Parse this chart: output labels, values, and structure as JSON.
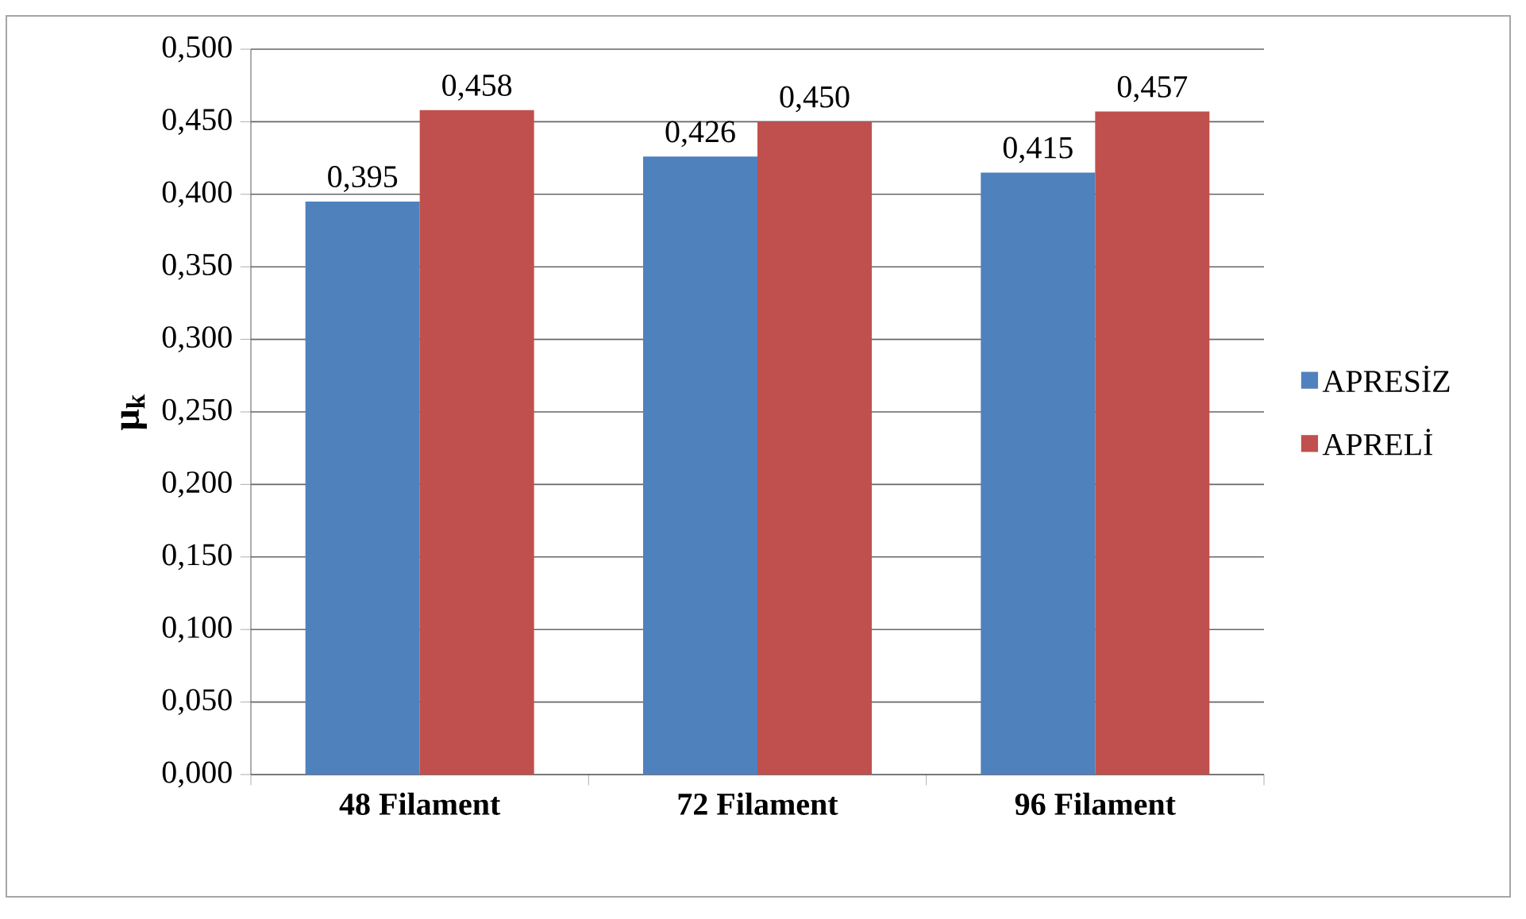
{
  "chart_data": {
    "type": "bar",
    "ylabel": "μ$_{k}$",
    "categories": [
      "48 Filament",
      "72 Filament",
      "96 Filament"
    ],
    "series": [
      {
        "name": "APRESİZ",
        "color": "#4f81bd",
        "values": [
          0.395,
          0.426,
          0.415
        ],
        "value_labels": [
          "0,395",
          "0,426",
          "0,415"
        ]
      },
      {
        "name": "APRELİ",
        "color": "#c0504d",
        "values": [
          0.458,
          0.45,
          0.457
        ],
        "value_labels": [
          "0,458",
          "0,450",
          "0,457"
        ]
      }
    ],
    "ylim": [
      0,
      0.5
    ],
    "yticks": [
      {
        "value": 0,
        "label": "0,000"
      },
      {
        "value": 0.05,
        "label": "0,050"
      },
      {
        "value": 0.1,
        "label": "0,100"
      },
      {
        "value": 0.15,
        "label": "0,150"
      },
      {
        "value": 0.2,
        "label": "0,200"
      },
      {
        "value": 0.25,
        "label": "0,250"
      },
      {
        "value": 0.3,
        "label": "0,300"
      },
      {
        "value": 0.35,
        "label": "0,350"
      },
      {
        "value": 0.4,
        "label": "0,400"
      },
      {
        "value": 0.45,
        "label": "0,450"
      },
      {
        "value": 0.5,
        "label": "0,500"
      }
    ],
    "grid": "y",
    "legend": "right"
  }
}
